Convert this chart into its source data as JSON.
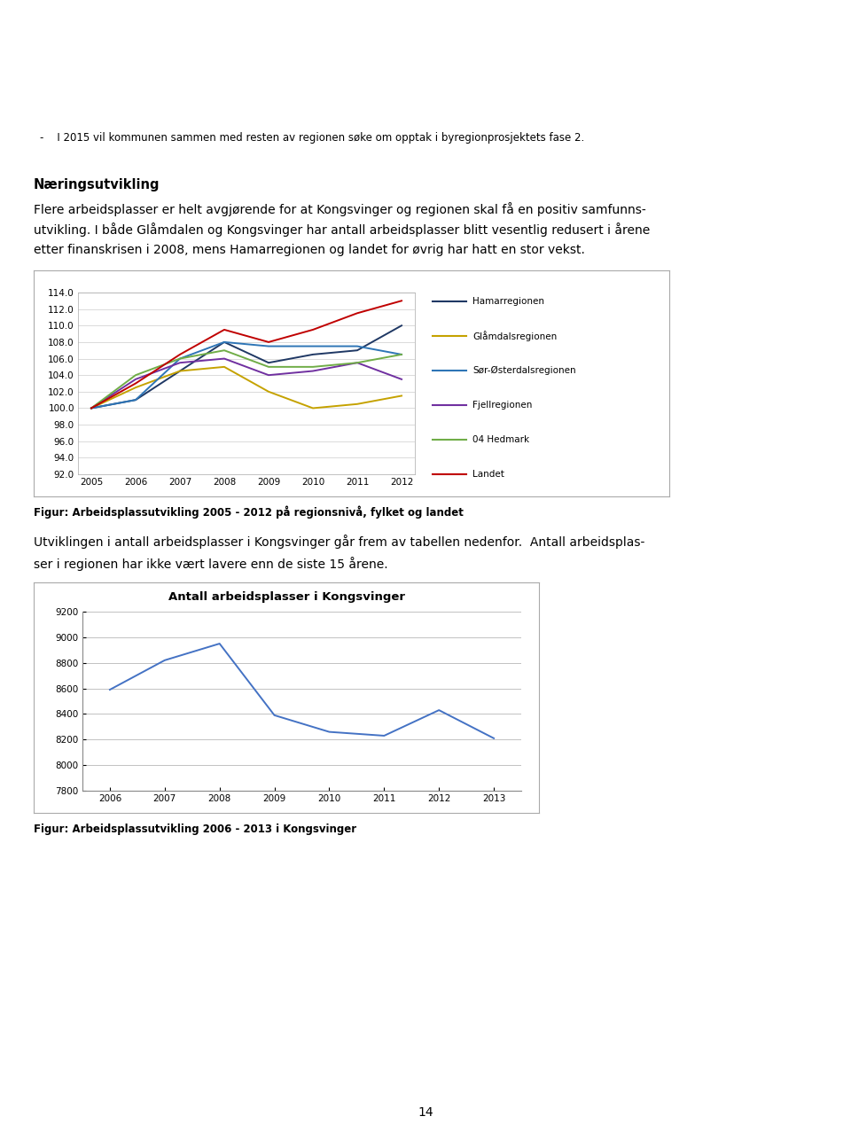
{
  "page_bg": "#ffffff",
  "header_bg": "#c8d45a",
  "header_text": "-    I 2015 vil kommunen sammen med resten av regionen søke om opptak i byregionprosjektets fase 2.",
  "header_text_color": "#000000",
  "section_title": "Næringsutvikling",
  "section_body1": "Flere arbeidsplasser er helt avgjørende for at Kongsvinger og regionen skal få en positiv samfunns-",
  "section_body2": "utvikling. I både Glåmdalen og Kongsvinger har antall arbeidsplasser blitt vesentlig redusert i årene",
  "section_body3": "etter finanskrisen i 2008, mens Hamarregionen og landet for øvrig har hatt en stor vekst.",
  "chart1_years": [
    2005,
    2006,
    2007,
    2008,
    2009,
    2010,
    2011,
    2012
  ],
  "chart1_hamarregionen": [
    100.0,
    101.0,
    104.5,
    108.0,
    105.5,
    106.5,
    107.0,
    110.0
  ],
  "chart1_glamdalsregionen": [
    100.0,
    102.5,
    104.5,
    105.0,
    102.0,
    100.0,
    100.5,
    101.5
  ],
  "chart1_sor_osterdalsregionen": [
    100.0,
    101.0,
    106.0,
    108.0,
    107.5,
    107.5,
    107.5,
    106.5
  ],
  "chart1_fjellregionen": [
    100.0,
    103.5,
    105.5,
    106.0,
    104.0,
    104.5,
    105.5,
    103.5
  ],
  "chart1_04hedmark": [
    100.0,
    104.0,
    106.0,
    107.0,
    105.0,
    105.0,
    105.5,
    106.5
  ],
  "chart1_landet": [
    100.0,
    103.0,
    106.5,
    109.5,
    108.0,
    109.5,
    111.5,
    113.0
  ],
  "chart1_ylim": [
    92.0,
    114.0
  ],
  "chart1_yticks": [
    92.0,
    94.0,
    96.0,
    98.0,
    100.0,
    102.0,
    104.0,
    106.0,
    108.0,
    110.0,
    112.0,
    114.0
  ],
  "chart1_legend": [
    "Hamarregionen",
    "Glåmdalsregionen",
    "Sør-Østerdalsregionen",
    "Fjellregionen",
    "04 Hedmark",
    "Landet"
  ],
  "chart1_colors": [
    "#1f3864",
    "#c5a200",
    "#2e75b6",
    "#7030a0",
    "#70ad47",
    "#c00000"
  ],
  "chart1_caption": "Figur: Arbeidsplassutvikling 2005 - 2012 på regionsnivå, fylket og landet",
  "text2_line1": "Utviklingen i antall arbeidsplasser i Kongsvinger går frem av tabellen nedenfor.  Antall arbeidsplas-",
  "text2_line2": "ser i regionen har ikke vært lavere enn de siste 15 årene.",
  "chart2_title": "Antall arbeidsplasser i Kongsvinger",
  "chart2_years": [
    2006,
    2007,
    2008,
    2009,
    2010,
    2011,
    2012,
    2013
  ],
  "chart2_values": [
    8590,
    8820,
    8950,
    8390,
    8260,
    8230,
    8430,
    8210
  ],
  "chart2_ylim": [
    7800,
    9200
  ],
  "chart2_yticks": [
    7800,
    8000,
    8200,
    8400,
    8600,
    8800,
    9000,
    9200
  ],
  "chart2_color": "#4472c4",
  "chart2_caption": "Figur: Arbeidsplassutvikling 2006 - 2013 i Kongsvinger",
  "page_number": "14"
}
